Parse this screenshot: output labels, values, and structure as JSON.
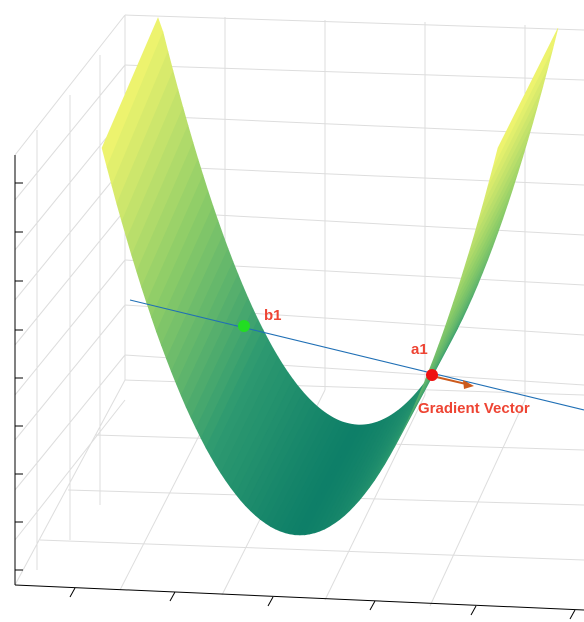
{
  "chart_data": {
    "type": "surface",
    "title": "",
    "xlabel": "",
    "ylabel": "",
    "zlabel": "",
    "surface": {
      "equation": "parabolic trough (valley) surface",
      "colormap": [
        "#0e7f68",
        "#2e9a70",
        "#8ccc68",
        "#f2f56e"
      ]
    },
    "points": [
      {
        "label": "b1",
        "color": "#22dd22"
      },
      {
        "label": "a1",
        "color": "#ee1111"
      }
    ],
    "line": {
      "color": "#1f6fb5",
      "through": [
        "b1",
        "a1"
      ]
    },
    "vector": {
      "label": "Gradient Vector",
      "color": "#cc5a1c",
      "from": "a1"
    },
    "annotation_color": "#ee4433",
    "grid": true,
    "tick_labels_visible": false
  }
}
